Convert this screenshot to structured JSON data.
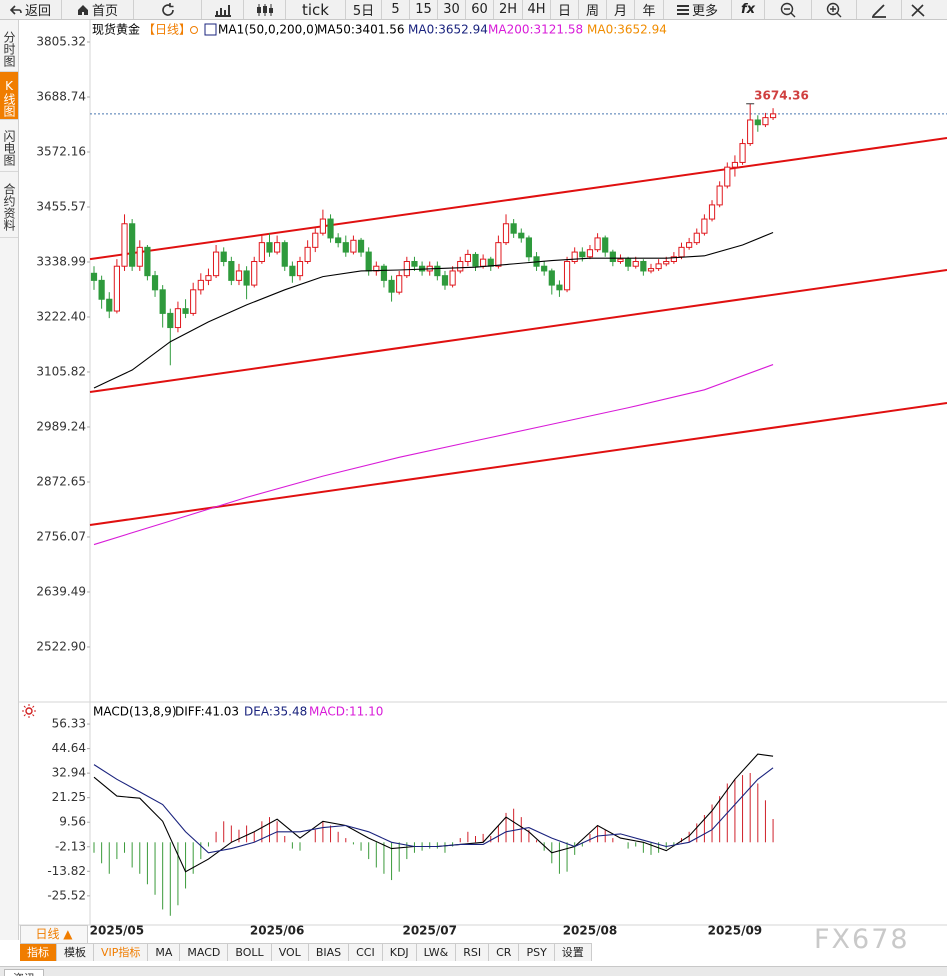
{
  "toolbar": [
    "返回",
    "首页",
    "tick",
    "5日",
    "5",
    "15",
    "30",
    "60",
    "2H",
    "4H",
    "日",
    "周",
    "月",
    "年",
    "更多",
    "fx"
  ],
  "sidebar": [
    "分时图",
    "K线图",
    "闪电图",
    "合约资料"
  ],
  "bottom_toolbar": [
    "指标",
    "模板",
    "VIP指标",
    "MA",
    "MACD",
    "BOLL",
    "VOL",
    "BIAS",
    "CCI",
    "KDJ",
    "LW&",
    "RSI",
    "CR",
    "PSY",
    "设置"
  ],
  "period_selector": "日线 ▲",
  "watermark": "FX678",
  "status_tab": "资讯",
  "chart_data": [
    {
      "type": "candlestick",
      "title": "现货黄金",
      "period": "【日线】",
      "indicator": "MA1(50,0,200,0)",
      "legend": [
        "MA50:3401.56",
        "MA0:3652.94",
        "MA200:3121.58",
        "MA0:3652.94"
      ],
      "legend_colors": [
        "#000000",
        "#1a237e",
        "#d81bd8",
        "#f08c00"
      ],
      "categories": [
        null,
        null,
        null,
        "2025/05",
        null,
        null,
        null,
        null,
        null,
        null,
        null,
        null,
        null,
        null,
        null,
        null,
        null,
        null,
        null,
        null,
        null,
        null,
        null,
        null,
        "2025/06",
        null,
        null,
        null,
        null,
        null,
        null,
        null,
        null,
        null,
        null,
        null,
        null,
        null,
        null,
        null,
        null,
        null,
        null,
        null,
        "2025/07",
        null,
        null,
        null,
        null,
        null,
        null,
        null,
        null,
        null,
        null,
        null,
        null,
        null,
        null,
        null,
        null,
        null,
        null,
        null,
        null,
        "2025/08",
        null,
        null,
        null,
        null,
        null,
        null,
        null,
        null,
        null,
        null,
        null,
        null,
        null,
        null,
        null,
        null,
        null,
        null,
        "2025/09",
        null,
        null,
        null,
        null,
        null
      ],
      "ohlc": [
        [
          3315,
          3330,
          3280,
          3300
        ],
        [
          3300,
          3310,
          3240,
          3260
        ],
        [
          3260,
          3275,
          3220,
          3235
        ],
        [
          3235,
          3345,
          3230,
          3330
        ],
        [
          3330,
          3440,
          3320,
          3420
        ],
        [
          3420,
          3430,
          3320,
          3330
        ],
        [
          3330,
          3385,
          3320,
          3370
        ],
        [
          3370,
          3375,
          3300,
          3310
        ],
        [
          3310,
          3320,
          3265,
          3280
        ],
        [
          3280,
          3290,
          3200,
          3230
        ],
        [
          3230,
          3240,
          3120,
          3200
        ],
        [
          3200,
          3255,
          3190,
          3240
        ],
        [
          3240,
          3260,
          3220,
          3230
        ],
        [
          3230,
          3295,
          3225,
          3280
        ],
        [
          3280,
          3315,
          3270,
          3300
        ],
        [
          3300,
          3325,
          3290,
          3310
        ],
        [
          3310,
          3375,
          3305,
          3360
        ],
        [
          3360,
          3370,
          3330,
          3340
        ],
        [
          3340,
          3350,
          3290,
          3300
        ],
        [
          3300,
          3335,
          3290,
          3320
        ],
        [
          3320,
          3330,
          3260,
          3290
        ],
        [
          3290,
          3350,
          3285,
          3340
        ],
        [
          3340,
          3395,
          3335,
          3380
        ],
        [
          3380,
          3400,
          3350,
          3360
        ],
        [
          3360,
          3395,
          3355,
          3380
        ],
        [
          3380,
          3385,
          3320,
          3330
        ],
        [
          3330,
          3340,
          3295,
          3310
        ],
        [
          3310,
          3350,
          3300,
          3340
        ],
        [
          3340,
          3385,
          3335,
          3370
        ],
        [
          3370,
          3410,
          3360,
          3400
        ],
        [
          3400,
          3450,
          3395,
          3430
        ],
        [
          3430,
          3440,
          3380,
          3390
        ],
        [
          3390,
          3400,
          3370,
          3380
        ],
        [
          3380,
          3395,
          3350,
          3360
        ],
        [
          3360,
          3395,
          3355,
          3385
        ],
        [
          3385,
          3390,
          3350,
          3360
        ],
        [
          3360,
          3370,
          3310,
          3320
        ],
        [
          3320,
          3340,
          3310,
          3330
        ],
        [
          3330,
          3335,
          3285,
          3300
        ],
        [
          3300,
          3310,
          3255,
          3275
        ],
        [
          3275,
          3320,
          3270,
          3310
        ],
        [
          3310,
          3350,
          3305,
          3340
        ],
        [
          3340,
          3350,
          3320,
          3330
        ],
        [
          3330,
          3340,
          3310,
          3320
        ],
        [
          3320,
          3340,
          3310,
          3330
        ],
        [
          3330,
          3340,
          3300,
          3310
        ],
        [
          3310,
          3320,
          3280,
          3290
        ],
        [
          3290,
          3330,
          3285,
          3320
        ],
        [
          3320,
          3350,
          3315,
          3340
        ],
        [
          3340,
          3365,
          3330,
          3355
        ],
        [
          3355,
          3360,
          3320,
          3330
        ],
        [
          3330,
          3355,
          3325,
          3345
        ],
        [
          3345,
          3350,
          3320,
          3330
        ],
        [
          3330,
          3395,
          3325,
          3380
        ],
        [
          3380,
          3440,
          3375,
          3420
        ],
        [
          3420,
          3430,
          3390,
          3400
        ],
        [
          3400,
          3410,
          3380,
          3390
        ],
        [
          3390,
          3395,
          3340,
          3350
        ],
        [
          3350,
          3360,
          3320,
          3330
        ],
        [
          3330,
          3340,
          3310,
          3320
        ],
        [
          3320,
          3325,
          3270,
          3290
        ],
        [
          3290,
          3300,
          3265,
          3280
        ],
        [
          3280,
          3350,
          3275,
          3340
        ],
        [
          3340,
          3370,
          3335,
          3360
        ],
        [
          3360,
          3370,
          3340,
          3350
        ],
        [
          3350,
          3375,
          3345,
          3365
        ],
        [
          3365,
          3400,
          3360,
          3390
        ],
        [
          3390,
          3395,
          3350,
          3360
        ],
        [
          3360,
          3365,
          3330,
          3340
        ],
        [
          3340,
          3355,
          3335,
          3345
        ],
        [
          3345,
          3350,
          3320,
          3330
        ],
        [
          3330,
          3350,
          3325,
          3340
        ],
        [
          3340,
          3345,
          3310,
          3320
        ],
        [
          3320,
          3335,
          3315,
          3325
        ],
        [
          3325,
          3345,
          3320,
          3335
        ],
        [
          3335,
          3350,
          3330,
          3340
        ],
        [
          3340,
          3360,
          3335,
          3350
        ],
        [
          3350,
          3380,
          3345,
          3370
        ],
        [
          3370,
          3390,
          3365,
          3380
        ],
        [
          3380,
          3410,
          3375,
          3400
        ],
        [
          3400,
          3440,
          3395,
          3430
        ],
        [
          3430,
          3470,
          3425,
          3460
        ],
        [
          3460,
          3510,
          3455,
          3500
        ],
        [
          3500,
          3550,
          3495,
          3540
        ],
        [
          3540,
          3565,
          3520,
          3550
        ],
        [
          3550,
          3600,
          3545,
          3590
        ],
        [
          3590,
          3674.36,
          3585,
          3640
        ],
        [
          3640,
          3650,
          3615,
          3630
        ],
        [
          3630,
          3655,
          3625,
          3645
        ],
        [
          3645,
          3665,
          3640,
          3652.94
        ]
      ],
      "up_color": "#e0181e",
      "down_color": "#2e9a3c",
      "lines": [
        {
          "color": "#000000",
          "x": [
            0,
            5,
            10,
            15,
            20,
            25,
            30,
            35,
            40,
            45,
            50,
            55,
            60,
            65,
            70,
            75,
            80,
            85,
            89
          ],
          "values": [
            3072,
            3110,
            3170,
            3212,
            3248,
            3280,
            3308,
            3320,
            3322,
            3325,
            3328,
            3335,
            3342,
            3347,
            3347,
            3347,
            3352,
            3375,
            3401.56
          ]
        },
        {
          "color": "#d81bd8",
          "x": [
            0,
            10,
            20,
            30,
            40,
            50,
            60,
            70,
            80,
            89
          ],
          "values": [
            2740,
            2790,
            2840,
            2885,
            2925,
            2960,
            2995,
            3030,
            3068,
            3121.58
          ]
        }
      ],
      "channel_lines": [
        {
          "color": "#e01010",
          "values": [
            3345,
            3601.8
          ]
        },
        {
          "color": "#e01010",
          "values": [
            3063.4,
            3322
          ]
        },
        {
          "color": "#e01010",
          "values": [
            2781.5,
            3040.1
          ]
        }
      ],
      "ylim": [
        2410.5,
        3847.7
      ],
      "yticks": [
        3805.32,
        3688.74,
        3572.16,
        3455.57,
        3338.99,
        {
          "value": 3222.4,
          "label": "3222.40"
        },
        3105.82,
        2989.24,
        2872.65,
        2756.07,
        2639.49,
        {
          "value": 2522.9,
          "label": "2522.90"
        }
      ]
    },
    {
      "type": "macd",
      "title": "MACD(13,8,9)",
      "legend": [
        "DIFF:41.03",
        "DEA:35.48",
        "MACD:11.10"
      ],
      "legend_colors": [
        "#000000",
        "#1a237e",
        "#d81bd8"
      ],
      "histogram": [
        -5,
        -10,
        -15,
        -8,
        -5,
        -12,
        -15,
        -20,
        -25,
        -32,
        -35,
        -30,
        -22,
        -15,
        -8,
        -2,
        5,
        10,
        8,
        6,
        8,
        5,
        10,
        12,
        10,
        3,
        -3,
        -4,
        0,
        6,
        10,
        8,
        5,
        2,
        -1,
        -4,
        -8,
        -12,
        -15,
        -18,
        -14,
        -8,
        -5,
        -4,
        -3,
        -3,
        -5,
        -2,
        2,
        5,
        3,
        4,
        3,
        8,
        14,
        16,
        12,
        6,
        1,
        -4,
        -10,
        -15,
        -14,
        -6,
        -2,
        4,
        8,
        6,
        2,
        0,
        -3,
        -2,
        -5,
        -6,
        -5,
        -3,
        -2,
        2,
        5,
        9,
        13,
        18,
        22,
        28,
        30,
        32,
        33,
        28,
        20,
        11.1
      ],
      "hist_up_color": "#d0202a",
      "hist_down_color": "#3a9a3a",
      "series": [
        {
          "color": "#000000",
          "x": [
            0,
            3,
            6,
            9,
            12,
            15,
            18,
            21,
            24,
            27,
            30,
            33,
            36,
            39,
            42,
            45,
            48,
            51,
            54,
            57,
            60,
            63,
            66,
            69,
            72,
            75,
            78,
            81,
            84,
            87,
            89
          ],
          "values": [
            31,
            22,
            21,
            10,
            -14,
            -8,
            0,
            5,
            11,
            2,
            10,
            8,
            2,
            -3,
            -2,
            -2,
            -1,
            0,
            12,
            5,
            -5,
            -2,
            8,
            2,
            0,
            -4,
            3,
            15,
            30,
            42,
            41.03
          ]
        },
        {
          "color": "#1a237e",
          "x": [
            0,
            3,
            6,
            9,
            12,
            15,
            18,
            21,
            24,
            27,
            30,
            33,
            36,
            39,
            42,
            45,
            48,
            51,
            54,
            57,
            60,
            63,
            66,
            69,
            72,
            75,
            78,
            81,
            84,
            87,
            89
          ],
          "values": [
            37,
            30,
            24,
            18,
            5,
            -5,
            -3,
            0,
            5,
            5,
            7,
            8,
            5,
            0,
            -2,
            -2,
            -1,
            -1,
            5,
            7,
            2,
            -2,
            3,
            4,
            1,
            -2,
            0,
            6,
            18,
            30,
            35.48
          ]
        }
      ],
      "ylim": [
        -39.4,
        65.4
      ],
      "yticks": [
        56.33,
        44.64,
        32.94,
        21.25,
        9.56,
        -2.13,
        -13.82,
        -25.52
      ]
    }
  ]
}
